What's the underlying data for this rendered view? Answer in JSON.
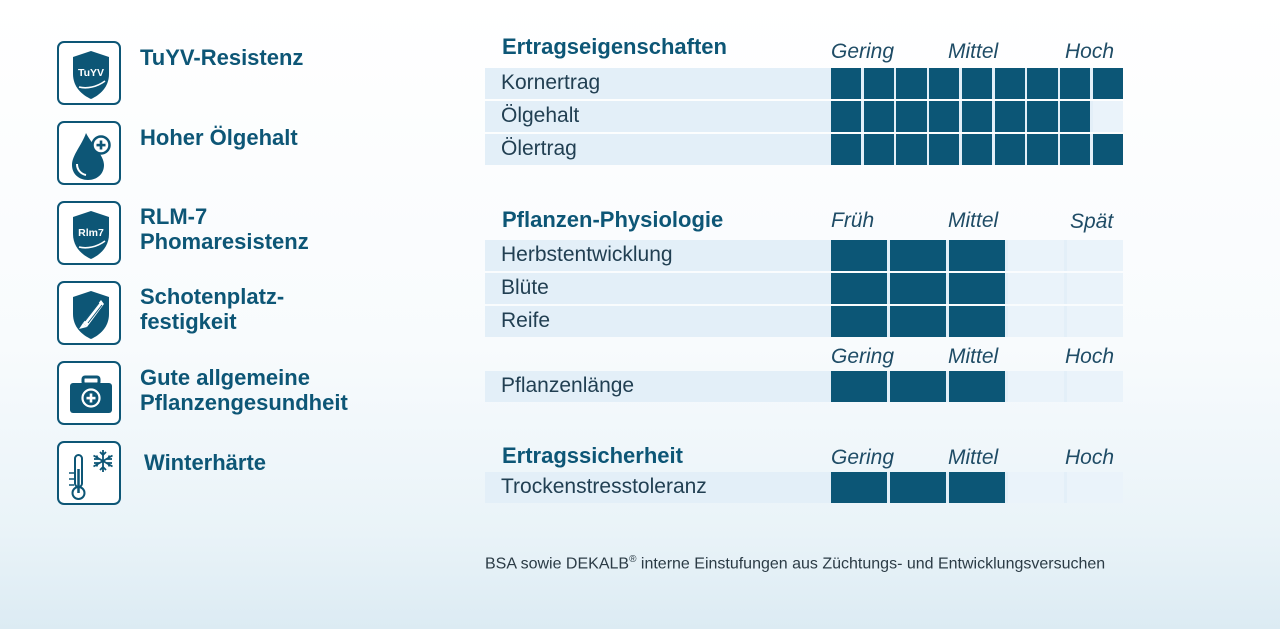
{
  "features": [
    {
      "icon": "tuyv-shield-icon",
      "badge": "TuYV",
      "label": "TuYV-Resistenz"
    },
    {
      "icon": "oil-drop-icon",
      "label": "Hoher Ölgehalt"
    },
    {
      "icon": "rlm7-shield-icon",
      "badge": "Rlm7",
      "label_line1": "RLM-7",
      "label_line2": "Phomaresistenz"
    },
    {
      "icon": "pod-shield-icon",
      "label_line1": "Schotenplatz-",
      "label_line2": "festigkeit"
    },
    {
      "icon": "first-aid-kit-icon",
      "label_line1": "Gute allgemeine",
      "label_line2": "Pflanzengesundheit"
    },
    {
      "icon": "thermometer-snowflake-icon",
      "label": "Winterhärte"
    }
  ],
  "sections": {
    "ertrag": {
      "title": "Ertragseigenschaften",
      "scale": [
        "Gering",
        "Mittel",
        "Hoch"
      ],
      "segments": 9,
      "rows": [
        {
          "label": "Kornertrag",
          "rating": 9
        },
        {
          "label": "Ölgehalt",
          "rating": 8
        },
        {
          "label": "Ölertrag",
          "rating": 9
        }
      ]
    },
    "physiologie": {
      "title": "Pflanzen-Physiologie",
      "scale": [
        "Früh",
        "Mittel",
        "Spät"
      ],
      "segments": 5,
      "rows": [
        {
          "label": "Herbstentwicklung",
          "rating": 3
        },
        {
          "label": "Blüte",
          "rating": 3
        },
        {
          "label": "Reife",
          "rating": 3
        }
      ]
    },
    "laenge": {
      "scale": [
        "Gering",
        "Mittel",
        "Hoch"
      ],
      "segments": 5,
      "rows": [
        {
          "label": "Pflanzenlänge",
          "rating": 3
        }
      ]
    },
    "sicherheit": {
      "title": "Ertragssicherheit",
      "scale": [
        "Gering",
        "Mittel",
        "Hoch"
      ],
      "segments": 5,
      "rows": [
        {
          "label": "Trockenstresstoleranz",
          "rating": 3
        }
      ]
    }
  },
  "footnote": {
    "before": "BSA sowie DEKALB",
    "reg": "®",
    "after": " interne Einstufungen aus Züchtungs- und Entwicklungsversuchen"
  },
  "colors": {
    "primary": "#0c5676",
    "row_bg": "#e3eff8",
    "empty_segment": "#eaf3fa"
  }
}
